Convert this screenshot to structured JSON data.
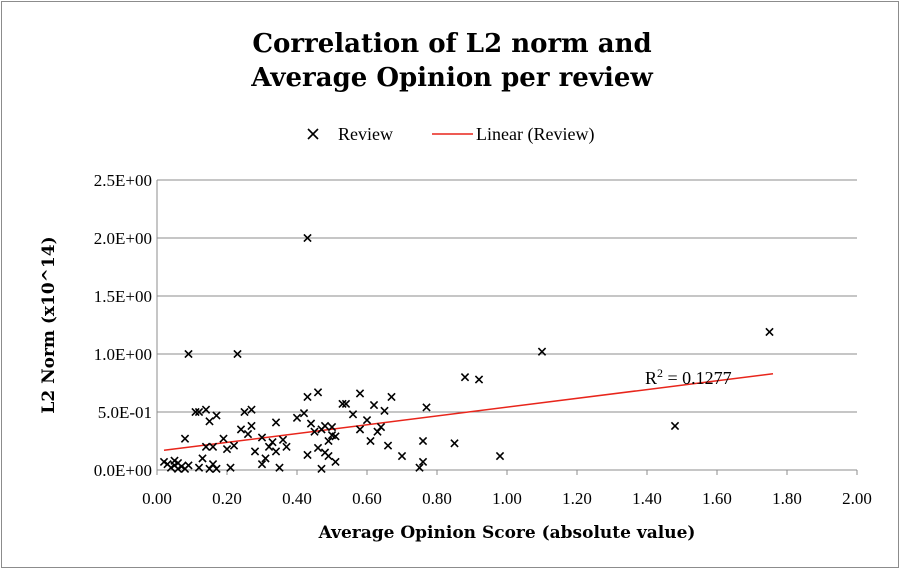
{
  "chart_data": {
    "type": "scatter",
    "title_line1": "Correlation of L2 norm and",
    "title_line2": "Average Opinion per review",
    "xlabel": "Average Opinion Score (absolute value)",
    "ylabel": "L2 Norm (x10^14)",
    "xlim": [
      0,
      2
    ],
    "ylim": [
      0,
      2.5
    ],
    "x_ticks": [
      "0.00",
      "0.20",
      "0.40",
      "0.60",
      "0.80",
      "1.00",
      "1.20",
      "1.40",
      "1.60",
      "1.80",
      "2.00"
    ],
    "x_tick_values": [
      0,
      0.2,
      0.4,
      0.6,
      0.8,
      1.0,
      1.2,
      1.4,
      1.6,
      1.8,
      2.0
    ],
    "y_ticks": [
      "0.0E+00",
      "5.0E-01",
      "1.0E+00",
      "1.5E+00",
      "2.0E+00",
      "2.5E+00"
    ],
    "y_tick_values": [
      0,
      0.5,
      1.0,
      1.5,
      2.0,
      2.5
    ],
    "grid": "horizontal",
    "legend_position": "top-center",
    "legend": [
      {
        "label": "Review",
        "marker": "x",
        "color": "#000000"
      },
      {
        "label": "Linear (Review)",
        "marker": "line",
        "color": "#e8251b"
      }
    ],
    "annotation": {
      "prefix": "R",
      "sup": "2",
      "suffix": " = 0.1277"
    },
    "trendline": {
      "x": [
        0.02,
        1.76
      ],
      "y": [
        0.17,
        0.83
      ]
    },
    "series": [
      {
        "name": "Review",
        "points": [
          [
            0.02,
            0.07
          ],
          [
            0.03,
            0.05
          ],
          [
            0.04,
            0.02
          ],
          [
            0.05,
            0.08
          ],
          [
            0.05,
            0.04
          ],
          [
            0.06,
            0.01
          ],
          [
            0.06,
            0.06
          ],
          [
            0.07,
            0.03
          ],
          [
            0.08,
            0.01
          ],
          [
            0.08,
            0.27
          ],
          [
            0.09,
            0.04
          ],
          [
            0.09,
            1.0
          ],
          [
            0.11,
            0.5
          ],
          [
            0.12,
            0.5
          ],
          [
            0.12,
            0.02
          ],
          [
            0.13,
            0.1
          ],
          [
            0.14,
            0.52
          ],
          [
            0.14,
            0.2
          ],
          [
            0.15,
            0.01
          ],
          [
            0.15,
            0.42
          ],
          [
            0.16,
            0.2
          ],
          [
            0.16,
            0.05
          ],
          [
            0.17,
            0.47
          ],
          [
            0.17,
            0.01
          ],
          [
            0.19,
            0.27
          ],
          [
            0.2,
            0.18
          ],
          [
            0.21,
            0.02
          ],
          [
            0.22,
            0.21
          ],
          [
            0.23,
            1.0
          ],
          [
            0.24,
            0.35
          ],
          [
            0.25,
            0.5
          ],
          [
            0.26,
            0.31
          ],
          [
            0.27,
            0.38
          ],
          [
            0.27,
            0.52
          ],
          [
            0.28,
            0.16
          ],
          [
            0.3,
            0.28
          ],
          [
            0.3,
            0.05
          ],
          [
            0.31,
            0.1
          ],
          [
            0.32,
            0.2
          ],
          [
            0.33,
            0.24
          ],
          [
            0.34,
            0.41
          ],
          [
            0.34,
            0.16
          ],
          [
            0.35,
            0.02
          ],
          [
            0.36,
            0.26
          ],
          [
            0.37,
            0.2
          ],
          [
            0.4,
            0.45
          ],
          [
            0.42,
            0.49
          ],
          [
            0.43,
            0.63
          ],
          [
            0.43,
            0.13
          ],
          [
            0.43,
            2.0
          ],
          [
            0.44,
            0.4
          ],
          [
            0.45,
            0.33
          ],
          [
            0.46,
            0.67
          ],
          [
            0.46,
            0.19
          ],
          [
            0.47,
            0.35
          ],
          [
            0.47,
            0.01
          ],
          [
            0.48,
            0.15
          ],
          [
            0.48,
            0.38
          ],
          [
            0.49,
            0.25
          ],
          [
            0.49,
            0.12
          ],
          [
            0.5,
            0.3
          ],
          [
            0.5,
            0.37
          ],
          [
            0.51,
            0.07
          ],
          [
            0.51,
            0.29
          ],
          [
            0.53,
            0.57
          ],
          [
            0.54,
            0.57
          ],
          [
            0.56,
            0.48
          ],
          [
            0.58,
            0.66
          ],
          [
            0.58,
            0.35
          ],
          [
            0.6,
            0.43
          ],
          [
            0.61,
            0.25
          ],
          [
            0.62,
            0.56
          ],
          [
            0.63,
            0.33
          ],
          [
            0.64,
            0.37
          ],
          [
            0.65,
            0.51
          ],
          [
            0.66,
            0.21
          ],
          [
            0.67,
            0.63
          ],
          [
            0.7,
            0.12
          ],
          [
            0.75,
            0.02
          ],
          [
            0.76,
            0.07
          ],
          [
            0.76,
            0.25
          ],
          [
            0.77,
            0.54
          ],
          [
            0.85,
            0.23
          ],
          [
            0.88,
            0.8
          ],
          [
            0.92,
            0.78
          ],
          [
            0.98,
            0.12
          ],
          [
            1.1,
            1.02
          ],
          [
            1.48,
            0.38
          ],
          [
            1.75,
            1.19
          ]
        ]
      }
    ]
  }
}
